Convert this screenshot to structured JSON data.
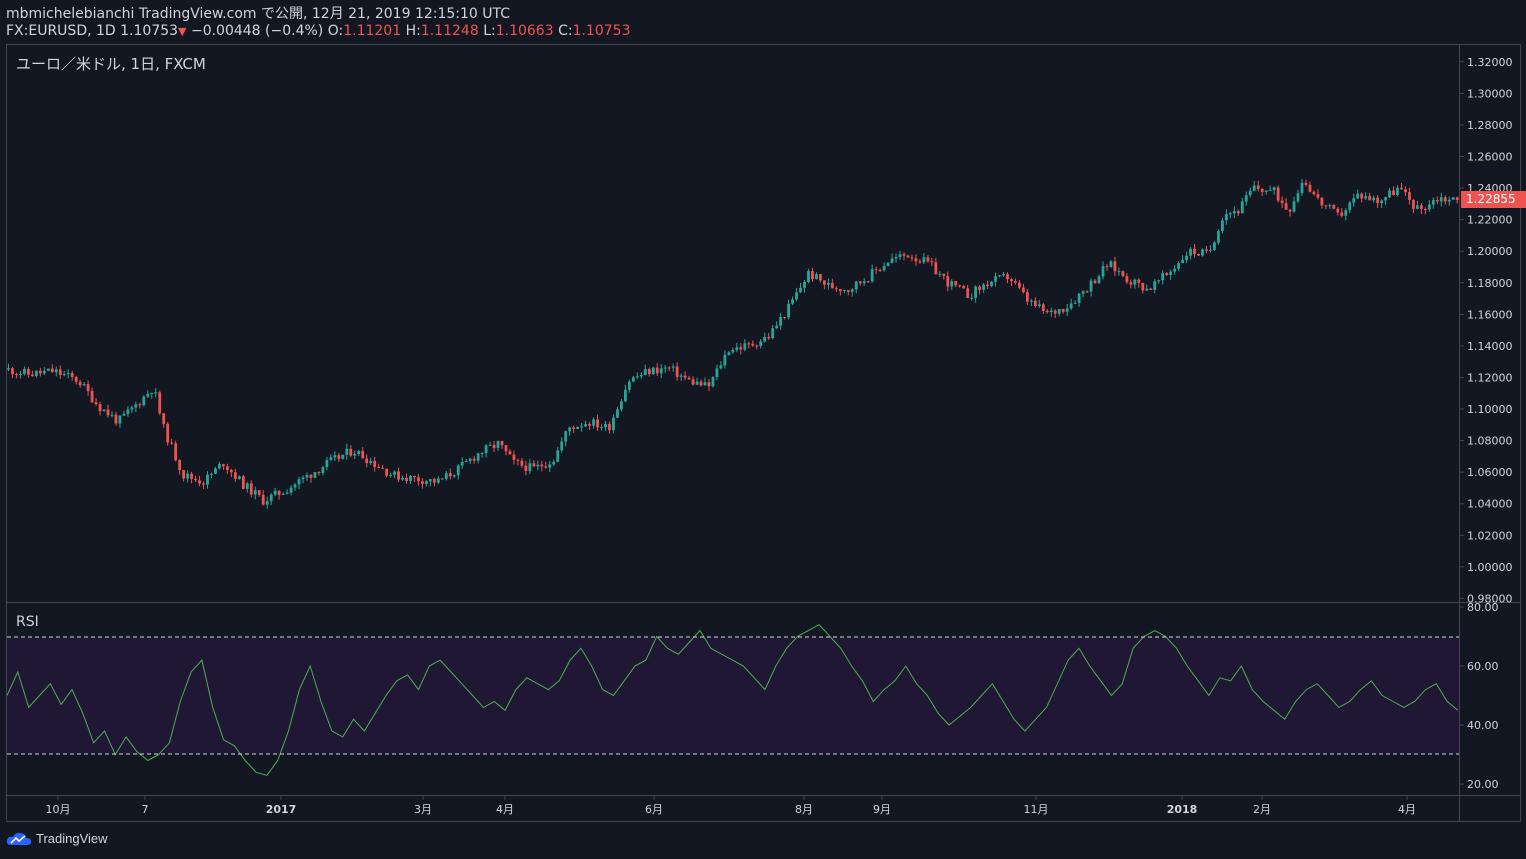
{
  "header": {
    "line1": "mbmichelebianchi TradingView.com で公開, 12月 21, 2019 12:15:10 UTC",
    "symbol": "FX:EURUSD, 1D",
    "last": "1.10753",
    "change": "−0.00448 (−0.4%)",
    "o_label": "O:",
    "o_value": "1.11201",
    "h_label": "H:",
    "h_value": "1.11248",
    "l_label": "L:",
    "l_value": "1.10663",
    "c_label": "C:",
    "c_value": "1.10753"
  },
  "main_pane": {
    "series_title": "ユーロ／米ドル, 1日, FXCM",
    "last_price_tag": "1.22855"
  },
  "rsi_pane": {
    "label": "RSI"
  },
  "footer": {
    "brand": "TradingView"
  },
  "colors": {
    "background": "#131722",
    "up": "#26a69a",
    "down": "#ef5350",
    "rsi_line": "#4caf50",
    "rsi_band": "#1f1733",
    "text": "#d1d4dc"
  },
  "chart_data": [
    {
      "type": "candlestick",
      "title": "ユーロ／米ドル, 1日, FXCM",
      "price_axis_ticks": [
        "1.32000",
        "1.30000",
        "1.28000",
        "1.26000",
        "1.24000",
        "1.22000",
        "1.20000",
        "1.18000",
        "1.16000",
        "1.14000",
        "1.12000",
        "1.10000",
        "1.08000",
        "1.06000",
        "1.04000",
        "1.02000",
        "1.00000",
        "0.98000"
      ],
      "ylim": [
        0.979,
        1.33
      ],
      "x_ticks": [
        "10月",
        "7",
        "2017",
        "3月",
        "4月",
        "6月",
        "8月",
        "9月",
        "11月",
        "2018",
        "2月",
        "4月"
      ],
      "close_path": [
        {
          "x": 0,
          "y": 1.125
        },
        {
          "x": 20,
          "y": 1.122
        },
        {
          "x": 45,
          "y": 1.124
        },
        {
          "x": 70,
          "y": 1.118
        },
        {
          "x": 90,
          "y": 1.102
        },
        {
          "x": 110,
          "y": 1.092
        },
        {
          "x": 130,
          "y": 1.104
        },
        {
          "x": 145,
          "y": 1.114
        },
        {
          "x": 155,
          "y": 1.088
        },
        {
          "x": 175,
          "y": 1.058
        },
        {
          "x": 195,
          "y": 1.054
        },
        {
          "x": 215,
          "y": 1.066
        },
        {
          "x": 235,
          "y": 1.052
        },
        {
          "x": 255,
          "y": 1.042
        },
        {
          "x": 275,
          "y": 1.048
        },
        {
          "x": 295,
          "y": 1.056
        },
        {
          "x": 320,
          "y": 1.066
        },
        {
          "x": 345,
          "y": 1.074
        },
        {
          "x": 365,
          "y": 1.066
        },
        {
          "x": 385,
          "y": 1.058
        },
        {
          "x": 405,
          "y": 1.056
        },
        {
          "x": 430,
          "y": 1.054
        },
        {
          "x": 450,
          "y": 1.062
        },
        {
          "x": 470,
          "y": 1.072
        },
        {
          "x": 490,
          "y": 1.078
        },
        {
          "x": 505,
          "y": 1.066
        },
        {
          "x": 525,
          "y": 1.062
        },
        {
          "x": 545,
          "y": 1.068
        },
        {
          "x": 560,
          "y": 1.088
        },
        {
          "x": 580,
          "y": 1.092
        },
        {
          "x": 600,
          "y": 1.088
        },
        {
          "x": 620,
          "y": 1.118
        },
        {
          "x": 640,
          "y": 1.124
        },
        {
          "x": 660,
          "y": 1.126
        },
        {
          "x": 680,
          "y": 1.118
        },
        {
          "x": 700,
          "y": 1.114
        },
        {
          "x": 720,
          "y": 1.138
        },
        {
          "x": 740,
          "y": 1.14
        },
        {
          "x": 760,
          "y": 1.146
        },
        {
          "x": 780,
          "y": 1.164
        },
        {
          "x": 800,
          "y": 1.186
        },
        {
          "x": 820,
          "y": 1.178
        },
        {
          "x": 840,
          "y": 1.176
        },
        {
          "x": 860,
          "y": 1.184
        },
        {
          "x": 880,
          "y": 1.194
        },
        {
          "x": 900,
          "y": 1.198
        },
        {
          "x": 920,
          "y": 1.192
        },
        {
          "x": 940,
          "y": 1.18
        },
        {
          "x": 960,
          "y": 1.172
        },
        {
          "x": 980,
          "y": 1.18
        },
        {
          "x": 1000,
          "y": 1.184
        },
        {
          "x": 1020,
          "y": 1.168
        },
        {
          "x": 1040,
          "y": 1.16
        },
        {
          "x": 1060,
          "y": 1.166
        },
        {
          "x": 1080,
          "y": 1.178
        },
        {
          "x": 1100,
          "y": 1.192
        },
        {
          "x": 1120,
          "y": 1.182
        },
        {
          "x": 1140,
          "y": 1.176
        },
        {
          "x": 1160,
          "y": 1.186
        },
        {
          "x": 1180,
          "y": 1.2
        },
        {
          "x": 1200,
          "y": 1.198
        },
        {
          "x": 1215,
          "y": 1.224
        },
        {
          "x": 1230,
          "y": 1.226
        },
        {
          "x": 1245,
          "y": 1.24
        },
        {
          "x": 1265,
          "y": 1.238
        },
        {
          "x": 1280,
          "y": 1.226
        },
        {
          "x": 1295,
          "y": 1.246
        },
        {
          "x": 1310,
          "y": 1.232
        },
        {
          "x": 1330,
          "y": 1.222
        },
        {
          "x": 1350,
          "y": 1.236
        },
        {
          "x": 1370,
          "y": 1.232
        },
        {
          "x": 1390,
          "y": 1.24
        },
        {
          "x": 1410,
          "y": 1.226
        },
        {
          "x": 1430,
          "y": 1.234
        },
        {
          "x": 1450,
          "y": 1.232
        }
      ]
    },
    {
      "type": "line",
      "title": "RSI",
      "ticks": [
        "80.00",
        "60.00",
        "40.00",
        "20.00"
      ],
      "ylim": [
        17,
        81
      ],
      "overbought": 70,
      "oversold": 30,
      "values": [
        50,
        58,
        46,
        50,
        54,
        47,
        52,
        44,
        34,
        38,
        30,
        36,
        31,
        28,
        30,
        34,
        48,
        58,
        62,
        46,
        35,
        33,
        28,
        24,
        23,
        28,
        38,
        52,
        60,
        48,
        38,
        36,
        42,
        38,
        44,
        50,
        55,
        57,
        52,
        60,
        62,
        58,
        54,
        50,
        46,
        48,
        45,
        52,
        56,
        54,
        52,
        55,
        62,
        66,
        60,
        52,
        50,
        55,
        60,
        62,
        70,
        66,
        64,
        68,
        72,
        66,
        64,
        62,
        60,
        56,
        52,
        60,
        66,
        70,
        72,
        74,
        70,
        66,
        60,
        55,
        48,
        52,
        55,
        60,
        54,
        50,
        44,
        40,
        43,
        46,
        50,
        54,
        48,
        42,
        38,
        42,
        46,
        54,
        62,
        66,
        60,
        55,
        50,
        54,
        66,
        70,
        72,
        70,
        66,
        60,
        55,
        50,
        56,
        55,
        60,
        52,
        48,
        45,
        42,
        48,
        52,
        54,
        50,
        46,
        48,
        52,
        55,
        50,
        48,
        46,
        48,
        52,
        54,
        48,
        45
      ]
    }
  ]
}
